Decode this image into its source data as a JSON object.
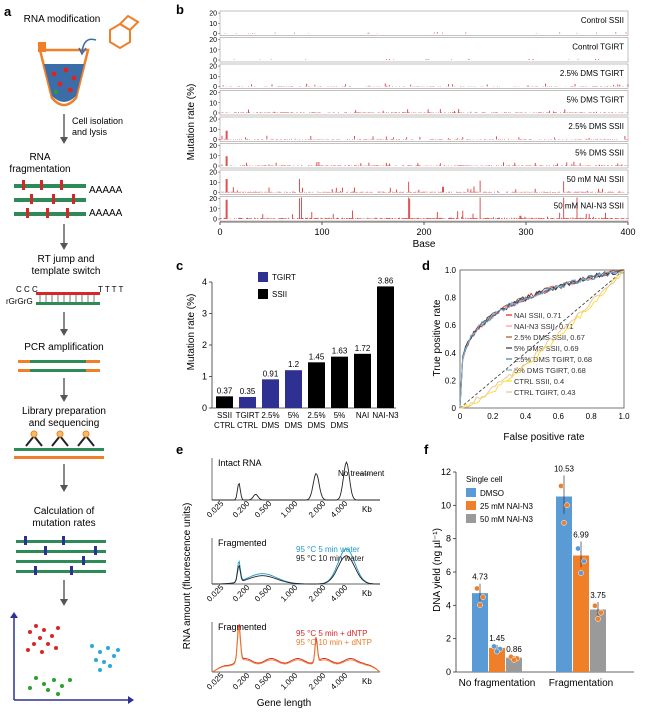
{
  "panel_labels": {
    "a": "a",
    "b": "b",
    "c": "c",
    "d": "d",
    "e": "e",
    "f": "f"
  },
  "panel_a": {
    "steps": [
      "RNA modification",
      "Cell isolation\nand lysis",
      "RNA\nfragmentation",
      "RT jump and\ntemplate switch",
      "PCR amplification",
      "Library preparation\nand sequencing",
      "Calculation of\nmutation rates"
    ],
    "polyA": [
      "AAAAA",
      "AAAAA"
    ],
    "ccc": "C C C",
    "rGrGrG": "rGrGrG",
    "tttt": "T T T T"
  },
  "colors": {
    "red": "#d62728",
    "blue": "#2e3192",
    "black": "#000000",
    "orange": "#f07f2a",
    "gray": "#9a9a9a",
    "lightblue": "#5b9bd5"
  },
  "chart_data": [
    {
      "panel": "b",
      "type": "bar",
      "ylabel": "Mutation rate (%)",
      "xlabel": "Base",
      "xlim": [
        0,
        400
      ],
      "xticks": [
        0,
        100,
        200,
        300,
        400
      ],
      "yticks": [
        0,
        10,
        20
      ],
      "rows": [
        "Control SSII",
        "Control TGIRT",
        "2.5% DMS TGIRT",
        "5% DMS TGIRT",
        "2.5% DMS SSII",
        "5% DMS SSII",
        "50 mM NAI SSII",
        "50 mM NAI-N3 SSII"
      ]
    },
    {
      "panel": "c",
      "type": "bar",
      "ylabel": "Mutation rate (%)",
      "ylim": [
        0,
        4
      ],
      "yticks": [
        0,
        1,
        2,
        3,
        4
      ],
      "legend": [
        "TGIRT",
        "SSII"
      ],
      "categories": [
        "SSII\nCTRL",
        "TGIRT\nCTRL",
        "2.5%\nDMS",
        "5%\nDMS",
        "2.5%\nDMS",
        "5%\nDMS",
        "NAI",
        "NAI-N3"
      ],
      "values": [
        0.37,
        0.35,
        0.91,
        1.2,
        1.45,
        1.63,
        1.72,
        3.86
      ],
      "value_labels": [
        "0.37",
        "0.35",
        "0.91",
        "1.2",
        "1.45",
        "1.63",
        "1.72",
        "3.86"
      ],
      "series_of": [
        "SSII",
        "TGIRT",
        "TGIRT",
        "TGIRT",
        "SSII",
        "SSII",
        "SSII",
        "SSII"
      ]
    },
    {
      "panel": "d",
      "type": "line",
      "xlabel": "False positive rate",
      "ylabel": "True positive rate",
      "xlim": [
        0,
        1
      ],
      "ylim": [
        0,
        1
      ],
      "xticks": [
        "0",
        "0.2",
        "0.4",
        "0.6",
        "0.8",
        "1.0"
      ],
      "yticks": [
        "0",
        "0.2",
        "0.4",
        "0.6",
        "0.8",
        "1.0"
      ],
      "series": [
        {
          "name": "NAI SSII, 0.71",
          "auc": 0.71,
          "color": "#e41a1c"
        },
        {
          "name": "NAI-N3 SSII, 0.71",
          "auc": 0.71,
          "color": "#fb9a99"
        },
        {
          "name": "2.5% DMS SSII, 0.67",
          "auc": 0.67,
          "color": "#a65628"
        },
        {
          "name": "5% DMS SSII, 0.69",
          "auc": 0.69,
          "color": "#333333"
        },
        {
          "name": "2.5% DMS TGIRT, 0.68",
          "auc": 0.68,
          "color": "#377eb8"
        },
        {
          "name": "5% DMS TGIRT, 0.68",
          "auc": 0.68,
          "color": "#80b1d3"
        },
        {
          "name": "CTRL SSII, 0.4",
          "auc": 0.4,
          "color": "#ffd92f"
        },
        {
          "name": "CTRL TGIRT, 0.43",
          "auc": 0.43,
          "color": "#e5c494"
        }
      ]
    },
    {
      "panel": "e",
      "type": "line",
      "ylabel": "RNA amount (fluorescence units)",
      "xlabel": "Gene length",
      "xticks": [
        "0.025",
        "0.200",
        "0.500",
        "1.000",
        "2.000",
        "4.000"
      ],
      "unit": "Kb",
      "subpanels": [
        {
          "title": "Intact RNA",
          "series": [
            "No treatment"
          ]
        },
        {
          "title": "Fragmented",
          "series": [
            "95 °C 5 min water",
            "95 °C 10 min water"
          ]
        },
        {
          "title": "Fragmented",
          "series": [
            "95 °C 5 min + dNTP",
            "95 °C 10 min + dNTP"
          ]
        }
      ]
    },
    {
      "panel": "f",
      "type": "bar",
      "ylabel": "DNA yield (ng µl⁻¹)",
      "ylim": [
        0,
        12
      ],
      "yticks": [
        0,
        2,
        4,
        6,
        8,
        10,
        12
      ],
      "legend_title": "Single cell",
      "categories": [
        "No fragmentation",
        "Fragmentation"
      ],
      "series": [
        {
          "name": "DMSO",
          "values": [
            4.73,
            10.53
          ],
          "color": "#5b9bd5"
        },
        {
          "name": "25 mM NAI-N3",
          "values": [
            1.45,
            6.99
          ],
          "color": "#f07f2a"
        },
        {
          "name": "50 mM NAI-N3",
          "values": [
            0.86,
            3.75
          ],
          "color": "#9a9a9a"
        }
      ],
      "value_labels": [
        [
          "4.73",
          "10.53"
        ],
        [
          "1.45",
          "6.99"
        ],
        [
          "0.86",
          "3.75"
        ]
      ]
    }
  ]
}
